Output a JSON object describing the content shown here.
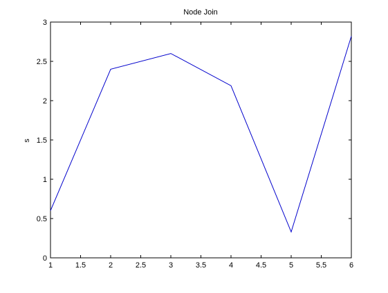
{
  "chart_data": {
    "type": "line",
    "title": "Node Join",
    "xlabel": "",
    "ylabel": "s",
    "xlim": [
      1,
      6
    ],
    "ylim": [
      0,
      3
    ],
    "xticks": [
      "1",
      "1.5",
      "2",
      "2.5",
      "3",
      "3.5",
      "4",
      "4.5",
      "5",
      "5.5",
      "6"
    ],
    "yticks": [
      "0",
      "0.5",
      "1",
      "1.5",
      "2",
      "2.5",
      "3"
    ],
    "grid": false,
    "series": [
      {
        "color": "#0000cc",
        "x": [
          1,
          2,
          3,
          4,
          5,
          6
        ],
        "y": [
          0.6,
          2.4,
          2.6,
          2.19,
          0.33,
          2.82
        ]
      }
    ]
  }
}
